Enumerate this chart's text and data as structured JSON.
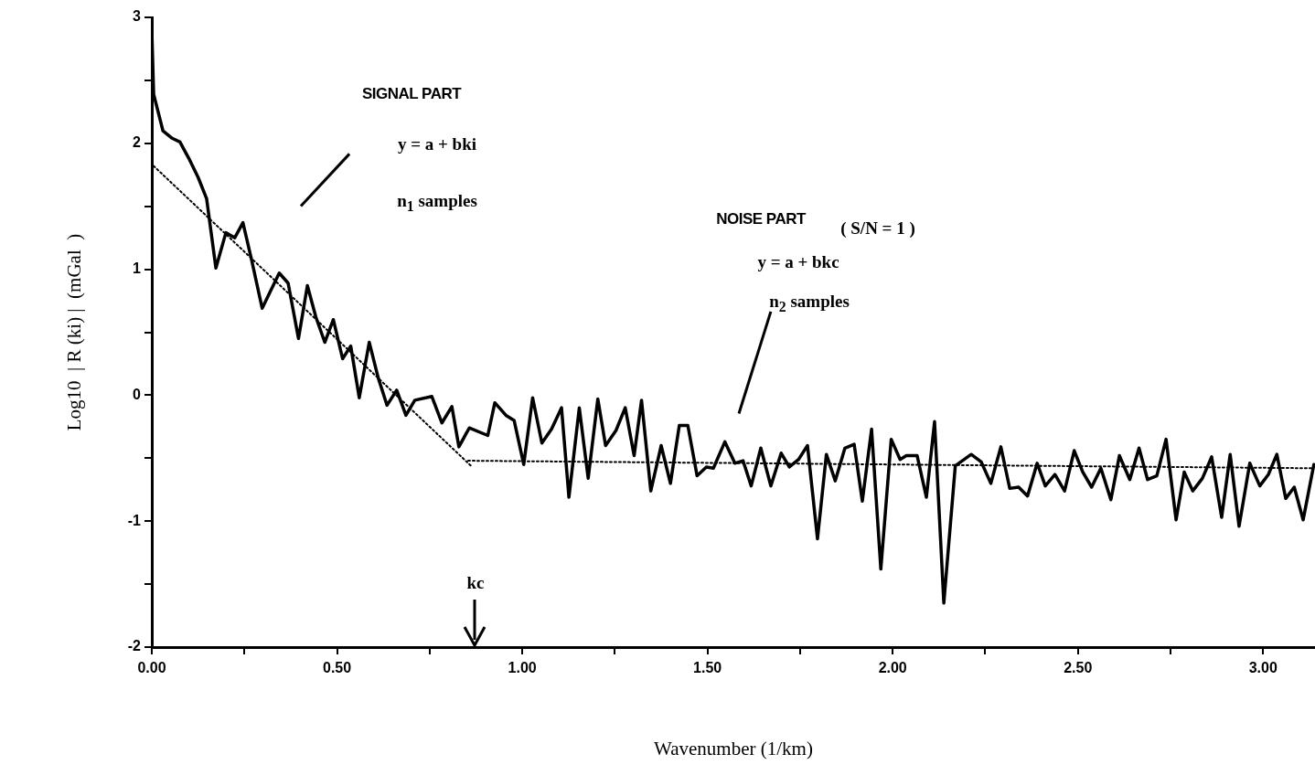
{
  "chart_data": {
    "type": "line",
    "xlabel": "Wavenumber (1/km)",
    "ylabel": "Log10  | R (ki) |  (mGal  )",
    "xlim": [
      0,
      3.14
    ],
    "ylim": [
      -2,
      3
    ],
    "xticks": [
      {
        "value": 0,
        "label": "0.00"
      },
      {
        "value": 0.25,
        "label": null
      },
      {
        "value": 0.5,
        "label": "0.50"
      },
      {
        "value": 0.75,
        "label": null
      },
      {
        "value": 1,
        "label": "1.00"
      },
      {
        "value": 1.25,
        "label": null
      },
      {
        "value": 1.5,
        "label": "1.50"
      },
      {
        "value": 1.75,
        "label": null
      },
      {
        "value": 2,
        "label": "2.00"
      },
      {
        "value": 2.25,
        "label": null
      },
      {
        "value": 2.5,
        "label": "2.50"
      },
      {
        "value": 2.75,
        "label": null
      },
      {
        "value": 3,
        "label": "3.00"
      }
    ],
    "yticks": [
      -2,
      {
        "value": -1.5,
        "label": null
      },
      -1,
      {
        "value": -0.5,
        "label": null
      },
      0,
      {
        "value": 0.5,
        "label": null
      },
      1,
      {
        "value": 1.5,
        "label": null
      },
      2,
      {
        "value": 2.5,
        "label": null
      },
      3
    ],
    "grid": false,
    "marker": "none",
    "series": [
      {
        "color": "#000000",
        "line_style": "solid",
        "x": [
          0,
          0.005,
          0.03,
          0.055,
          0.076,
          0.1,
          0.125,
          0.148,
          0.173,
          0.2,
          0.224,
          0.246,
          0.269,
          0.298,
          0.344,
          0.368,
          0.396,
          0.42,
          0.443,
          0.467,
          0.49,
          0.515,
          0.537,
          0.56,
          0.587,
          0.611,
          0.635,
          0.661,
          0.686,
          0.71,
          0.756,
          0.783,
          0.81,
          0.829,
          0.857,
          0.907,
          0.926,
          0.956,
          0.978,
          1.004,
          1.028,
          1.053,
          1.079,
          1.106,
          1.126,
          1.154,
          1.178,
          1.204,
          1.225,
          1.253,
          1.278,
          1.302,
          1.322,
          1.347,
          1.375,
          1.4,
          1.424,
          1.447,
          1.472,
          1.497,
          1.516,
          1.547,
          1.574,
          1.596,
          1.618,
          1.644,
          1.671,
          1.699,
          1.721,
          1.746,
          1.77,
          1.797,
          1.821,
          1.845,
          1.871,
          1.896,
          1.918,
          1.943,
          1.968,
          1.996,
          2.02,
          2.037,
          2.066,
          2.091,
          2.113,
          2.138,
          2.169,
          2.212,
          2.239,
          2.265,
          2.292,
          2.316,
          2.34,
          2.364,
          2.39,
          2.412,
          2.438,
          2.464,
          2.49,
          2.513,
          2.537,
          2.562,
          2.589,
          2.612,
          2.64,
          2.665,
          2.688,
          2.713,
          2.738,
          2.765,
          2.787,
          2.81,
          2.836,
          2.861,
          2.888,
          2.911,
          2.935,
          2.964,
          2.991,
          3.014,
          3.037,
          3.061,
          3.084,
          3.108,
          3.137
        ],
        "values": [
          2.9,
          2.39,
          2.1,
          2.04,
          2.01,
          1.88,
          1.73,
          1.56,
          1.01,
          1.29,
          1.25,
          1.37,
          1.08,
          0.69,
          0.97,
          0.89,
          0.45,
          0.87,
          0.62,
          0.42,
          0.6,
          0.29,
          0.39,
          -0.02,
          0.42,
          0.14,
          -0.08,
          0.04,
          -0.16,
          -0.04,
          -0.01,
          -0.22,
          -0.09,
          -0.41,
          -0.26,
          -0.32,
          -0.06,
          -0.16,
          -0.2,
          -0.55,
          -0.02,
          -0.38,
          -0.27,
          -0.1,
          -0.81,
          -0.1,
          -0.66,
          -0.03,
          -0.4,
          -0.28,
          -0.1,
          -0.48,
          -0.04,
          -0.76,
          -0.4,
          -0.7,
          -0.24,
          -0.24,
          -0.64,
          -0.57,
          -0.58,
          -0.37,
          -0.54,
          -0.52,
          -0.72,
          -0.42,
          -0.72,
          -0.46,
          -0.57,
          -0.51,
          -0.4,
          -1.14,
          -0.47,
          -0.68,
          -0.42,
          -0.39,
          -0.84,
          -0.27,
          -1.38,
          -0.35,
          -0.51,
          -0.48,
          -0.48,
          -0.81,
          -0.21,
          -1.65,
          -0.56,
          -0.47,
          -0.53,
          -0.7,
          -0.41,
          -0.74,
          -0.73,
          -0.8,
          -0.54,
          -0.72,
          -0.63,
          -0.76,
          -0.44,
          -0.61,
          -0.73,
          -0.58,
          -0.83,
          -0.48,
          -0.67,
          -0.42,
          -0.67,
          -0.64,
          -0.35,
          -0.99,
          -0.61,
          -0.76,
          -0.66,
          -0.49,
          -0.97,
          -0.47,
          -1.04,
          -0.54,
          -0.72,
          -0.63,
          -0.47,
          -0.82,
          -0.73,
          -0.99,
          -0.55
        ]
      },
      {
        "type": "line",
        "color": "#000000",
        "line_style": "dotted",
        "x": [
          0.005,
          0.865
        ],
        "values": [
          1.82,
          -0.57
        ]
      },
      {
        "type": "line",
        "color": "#000000",
        "line_style": "dotted",
        "x": [
          0.854,
          3.137
        ],
        "values": [
          -0.52,
          -0.58
        ]
      }
    ],
    "annotations": [
      "SIGNAL PART",
      "y = a + bki",
      "n$_{1}$  samples",
      "NOISE PART",
      "( S/N = 1 )",
      "y = a + bkc",
      "n$_{2}$  samples",
      "kc"
    ]
  }
}
